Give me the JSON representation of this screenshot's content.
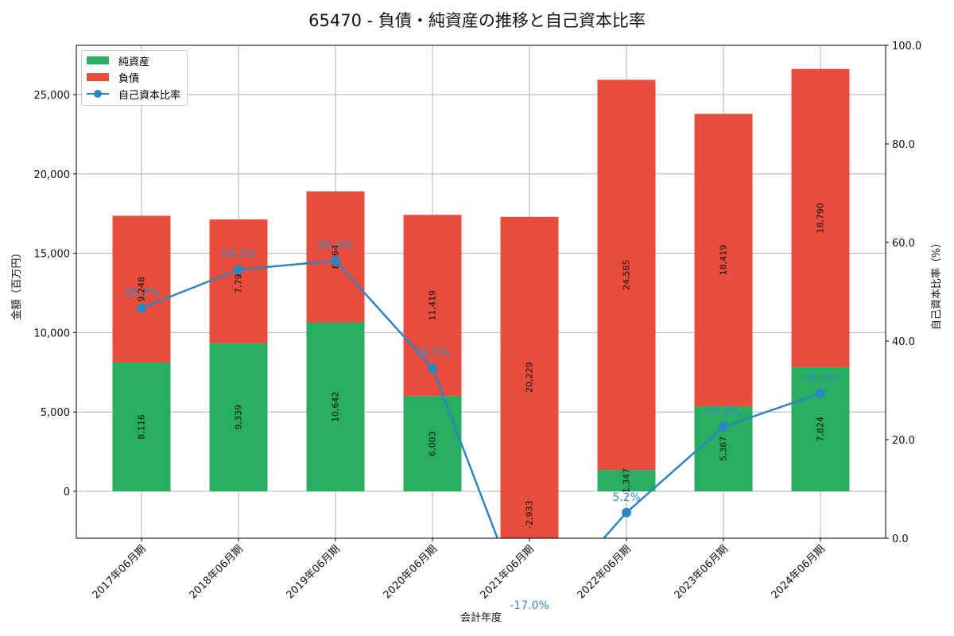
{
  "title": "65470 - 負債・純資産の推移と自己資本比率",
  "legend": {
    "net_assets": "純資産",
    "liabilities": "負債",
    "equity_ratio": "自己資本比率"
  },
  "colors": {
    "net_assets": "#27ae60",
    "liabilities": "#e74c3c",
    "equity_ratio": "#2e86c1",
    "grid": "#b0b0b0"
  },
  "chart_data": {
    "type": "bar",
    "subtype": "stacked bar with line on secondary axis",
    "title": "65470 - 負債・純資産の推移と自己資本比率",
    "xlabel": "会計年度",
    "ylabel": "金額（百万円）",
    "y2label": "自己資本比率（%）",
    "categories": [
      "2017年06月期",
      "2018年06月期",
      "2019年06月期",
      "2020年06月期",
      "2021年06月期",
      "2022年06月期",
      "2023年06月期",
      "2024年06月期"
    ],
    "series": [
      {
        "name": "純資産",
        "type": "bar",
        "axis": "left",
        "values": [
          8116,
          9339,
          10642,
          6003,
          -2933,
          1347,
          5367,
          7824
        ]
      },
      {
        "name": "負債",
        "type": "bar",
        "axis": "left",
        "values": [
          9248,
          7792,
          8264,
          11419,
          20229,
          24585,
          18419,
          18790
        ]
      },
      {
        "name": "自己資本比率",
        "type": "line",
        "axis": "right",
        "values": [
          46.7,
          54.5,
          56.3,
          34.5,
          -17.0,
          5.2,
          22.6,
          29.4
        ]
      }
    ],
    "bar_labels": [
      "8,116",
      "9,339",
      "10,642",
      "6,003",
      "-2,933",
      "1,347",
      "5,367",
      "7,824"
    ],
    "liab_labels": [
      "9,248",
      "7,79?",
      "8,?64",
      "11,419",
      "20,229",
      "24,585",
      "18,419",
      "18,790"
    ],
    "pct_labels": [
      "46.7%",
      "54.5%",
      "56.3%",
      "34.5%",
      "-17.0%",
      "5.2%",
      "22.6%",
      "29.4%"
    ],
    "ylim": [
      -2950,
      28100
    ],
    "y2lim": [
      0,
      100
    ],
    "yticks": [
      0,
      5000,
      10000,
      15000,
      20000,
      25000
    ],
    "ytick_labels": [
      "0",
      "5,000",
      "10,000",
      "15,000",
      "20,000",
      "25,000"
    ],
    "y2ticks": [
      0,
      20,
      40,
      60,
      80,
      100
    ],
    "y2tick_labels": [
      "0.0",
      "20.0",
      "40.0",
      "60.0",
      "80.0",
      "100.0"
    ],
    "grid": true,
    "legend_position": "upper left"
  }
}
